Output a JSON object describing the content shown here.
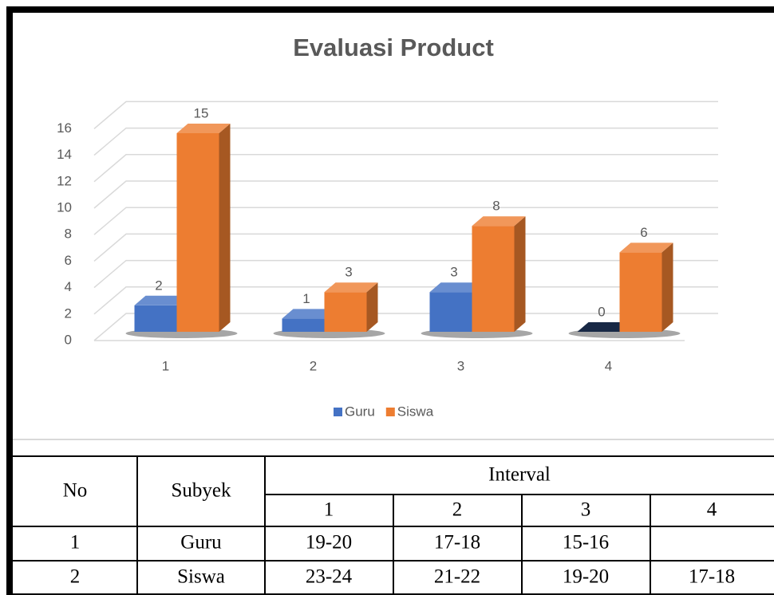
{
  "chart_data": {
    "type": "bar3d",
    "title": "Evaluasi Product",
    "categories": [
      "1",
      "2",
      "3",
      "4"
    ],
    "series": [
      {
        "name": "Guru",
        "color": "#4472c4",
        "values": [
          2,
          1,
          3,
          0
        ]
      },
      {
        "name": "Siswa",
        "color": "#ed7d31",
        "values": [
          15,
          3,
          8,
          6
        ]
      }
    ],
    "ylim": [
      0,
      16
    ],
    "yticks": [
      0,
      2,
      4,
      6,
      8,
      10,
      12,
      14,
      16
    ],
    "grid": true,
    "legend": "bottom"
  },
  "table": {
    "header": {
      "no": "No",
      "subject": "Subyek",
      "interval": "Interval",
      "intervals": [
        "1",
        "2",
        "3",
        "4"
      ]
    },
    "rows": [
      [
        "1",
        "Guru",
        "19-20",
        "17-18",
        "15-16",
        null
      ],
      [
        "2",
        "Siswa",
        "23-24",
        "21-22",
        "19-20",
        "17-18"
      ]
    ]
  }
}
